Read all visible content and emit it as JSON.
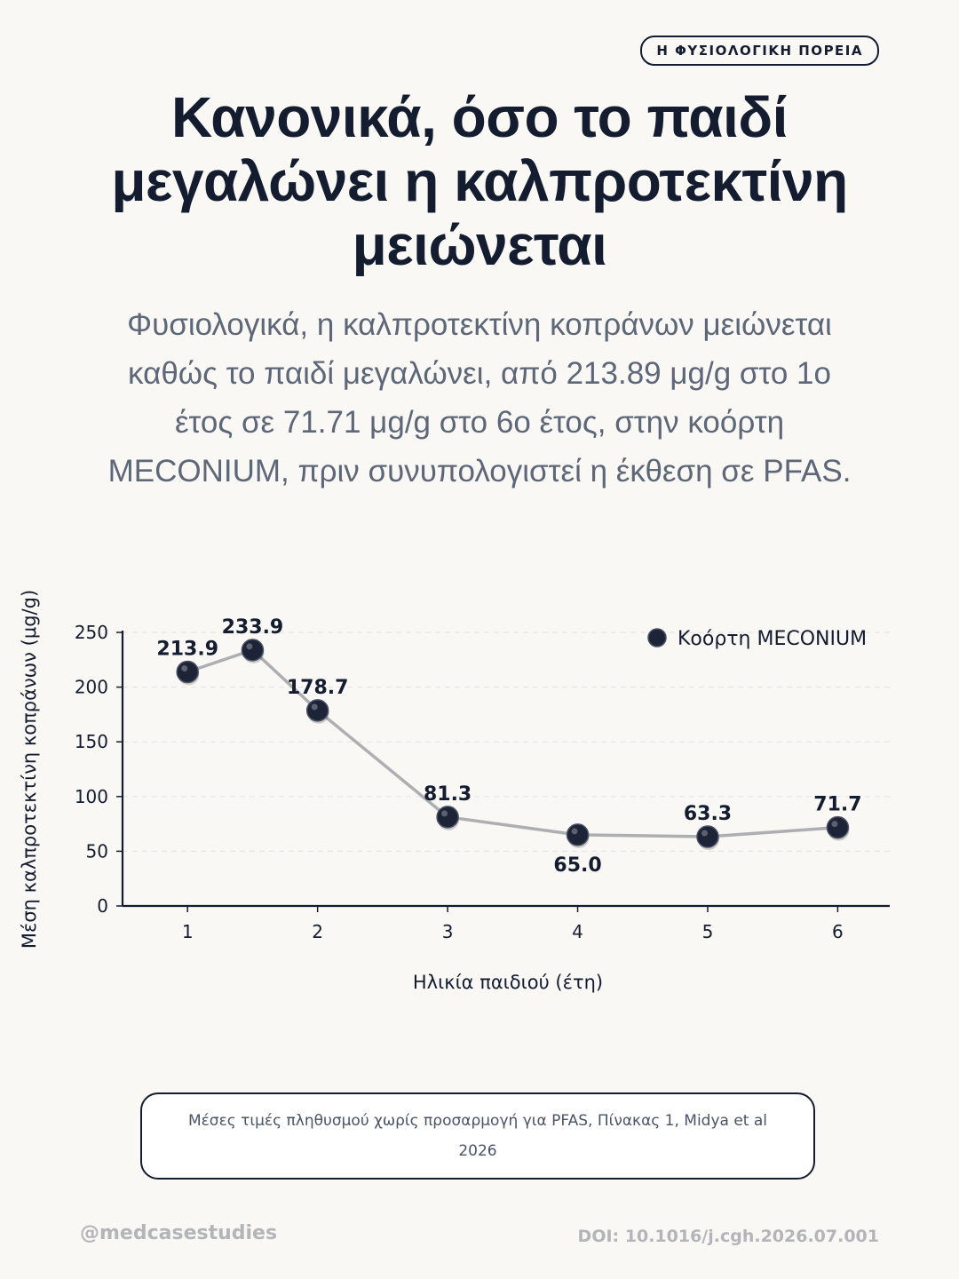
{
  "badge": "Η ΦΥΣΙΟΛΟΓΙΚΗ ΠΟΡΕΙΑ",
  "title": "Κανονικά, όσο το παιδί μεγαλώνει η καλπροτεκτίνη μειώνεται",
  "subtitle": "Φυσιολογικά, η καλπροτεκτίνη κοπράνων μειώνεται καθώς το παιδί μεγαλώνει, από 213.89 μg/g στο 1ο έτος σε 71.71 μg/g στο 6ο έτος, στην κοόρτη MECONIUM, πριν συνυπολογιστεί η έκθεση σε PFAS.",
  "footnote": "Μέσες τιμές πληθυσμού χωρίς προσαρμογή για PFAS, Πίνακας 1, Midya et al 2026",
  "footer": {
    "handle": "@medcasestudies",
    "doi": "DOI: 10.1016/j.cgh.2026.07.001"
  },
  "colors": {
    "marker": "#1d2438",
    "line": "#aeafb3",
    "text": "#141c30",
    "grid": "#e6e6e6",
    "background": "#f9f8f5"
  },
  "chart_data": {
    "type": "line",
    "xlabel": "Ηλικία παιδιού (έτη)",
    "ylabel": "Μέση καλπροτεκτίνη κοπράνων (μg/g)",
    "xlim": [
      0.5,
      6.4
    ],
    "ylim": [
      0,
      250
    ],
    "xticks": [
      1,
      2,
      3,
      4,
      5,
      6
    ],
    "yticks": [
      0,
      50,
      100,
      150,
      200,
      250
    ],
    "grid": "horizontal-dashed",
    "legend_position": "top-right",
    "series": [
      {
        "name": "Κοόρτη MECONIUM",
        "x": [
          1,
          1.5,
          2,
          3,
          4,
          5,
          6
        ],
        "y": [
          213.9,
          233.9,
          178.7,
          81.3,
          65.0,
          63.3,
          71.7
        ],
        "labels": [
          "213.9",
          "233.9",
          "178.7",
          "81.3",
          "65.0",
          "63.3",
          "71.7"
        ],
        "label_side": [
          "above",
          "above",
          "above",
          "above",
          "below",
          "above",
          "above"
        ]
      }
    ]
  }
}
